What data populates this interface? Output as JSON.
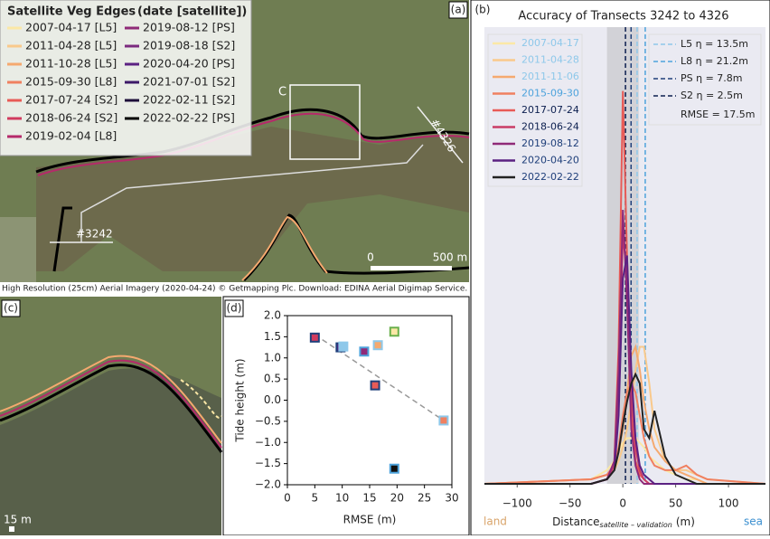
{
  "map": {
    "panel_label": "(a)",
    "legend_title": "Satellite Veg Edges",
    "legend_subtitle": "(date [satellite])",
    "legend": [
      {
        "label": "2007-04-17 [L5]",
        "color": "#fbe8a6"
      },
      {
        "label": "2011-04-28 [L5]",
        "color": "#f9c98b"
      },
      {
        "label": "2011-10-28 [L5]",
        "color": "#f5a96f"
      },
      {
        "label": "2015-09-30 [L8]",
        "color": "#f08060"
      },
      {
        "label": "2017-07-24 [S2]",
        "color": "#e85b57"
      },
      {
        "label": "2018-06-24 [S2]",
        "color": "#d13b5f"
      },
      {
        "label": "2019-02-04 [L8]",
        "color": "#b52a6a"
      },
      {
        "label": "2019-08-12 [PS]",
        "color": "#8f2a78"
      },
      {
        "label": "2019-08-18 [S2]",
        "color": "#7b2a7e"
      },
      {
        "label": "2020-04-20 [PS]",
        "color": "#5b2182"
      },
      {
        "label": "2021-07-01 [S2]",
        "color": "#3c1868"
      },
      {
        "label": "2022-02-11 [S2]",
        "color": "#1e0f3a"
      },
      {
        "label": "2022-02-22 [PS]",
        "color": "#000000"
      }
    ],
    "box_label": "C",
    "transects": [
      "#4326",
      "#3242"
    ],
    "scale_start": "0",
    "scale_end": "500 m",
    "caption": "High Resolution (25cm) Aerial Imagery (2020-04-24) © Getmapping Plc. Download: EDINA Aerial Digimap Service."
  },
  "inset": {
    "panel_label": "(c)",
    "scale": "15 m"
  },
  "chart_data": [
    {
      "type": "density",
      "panel_label": "(b)",
      "title": "Accuracy of Transects 3242 to 4326",
      "xlabel": "Distance",
      "xlabel_sub": "satellite – validation",
      "xlabel_unit": "(m)",
      "left_note": "land",
      "right_note": "sea",
      "xlim": [
        -131,
        135
      ],
      "ylim": [
        0,
        1
      ],
      "xticks": [
        {
          "value": -100,
          "label": "−100"
        },
        {
          "value": -50,
          "label": "−50"
        },
        0,
        50,
        100
      ],
      "shaded_range": [
        -15,
        15
      ],
      "x": [
        -131,
        -30,
        -15,
        -8,
        -4,
        0,
        4,
        8,
        12,
        16,
        20,
        25,
        30,
        40,
        50,
        60,
        70,
        80,
        135
      ],
      "series": [
        {
          "name": "2007-04-17",
          "color": "#fbe8a6",
          "label_color": "#8ec8ea",
          "values": [
            0,
            0.01,
            0.03,
            0.05,
            0.07,
            0.09,
            0.1,
            0.1,
            0.1,
            0.09,
            0.08,
            0.06,
            0.05,
            0.03,
            0.02,
            0.01,
            0.01,
            0,
            0
          ]
        },
        {
          "name": "2011-04-28",
          "color": "#f9c98b",
          "label_color": "#8ec8ea",
          "values": [
            0,
            0.01,
            0.02,
            0.03,
            0.05,
            0.08,
            0.12,
            0.18,
            0.25,
            0.3,
            0.3,
            0.22,
            0.12,
            0.05,
            0.03,
            0.03,
            0.02,
            0.01,
            0
          ]
        },
        {
          "name": "2011-11-06",
          "color": "#f5a96f",
          "label_color": "#8ec8ea",
          "values": [
            0,
            0.01,
            0.02,
            0.04,
            0.07,
            0.12,
            0.2,
            0.28,
            0.3,
            0.25,
            0.18,
            0.12,
            0.08,
            0.05,
            0.03,
            0.02,
            0.01,
            0,
            0
          ]
        },
        {
          "name": "2015-09-30",
          "color": "#f08060",
          "label_color": "#4ea3dc",
          "values": [
            0,
            0.01,
            0.02,
            0.04,
            0.08,
            0.15,
            0.2,
            0.22,
            0.2,
            0.15,
            0.1,
            0.06,
            0.04,
            0.03,
            0.03,
            0.04,
            0.02,
            0.01,
            0
          ]
        },
        {
          "name": "2017-07-24",
          "color": "#e85b57",
          "label_color": "#0c1f4f",
          "values": [
            0,
            0,
            0.01,
            0.05,
            0.3,
            0.86,
            0.5,
            0.15,
            0.05,
            0.02,
            0.01,
            0,
            0,
            0,
            0,
            0,
            0,
            0,
            0
          ]
        },
        {
          "name": "2018-06-24",
          "color": "#c93d66",
          "label_color": "#0c1f4f",
          "values": [
            0,
            0,
            0.01,
            0.04,
            0.2,
            0.55,
            0.45,
            0.2,
            0.08,
            0.03,
            0.01,
            0,
            0,
            0,
            0,
            0,
            0,
            0,
            0
          ]
        },
        {
          "name": "2019-08-12",
          "color": "#8f2a78",
          "label_color": "#1f3f7a",
          "values": [
            0,
            0,
            0.01,
            0.05,
            0.25,
            0.6,
            0.4,
            0.12,
            0.04,
            0.01,
            0,
            0,
            0,
            0,
            0,
            0,
            0,
            0,
            0
          ]
        },
        {
          "name": "2020-04-20",
          "color": "#5b2182",
          "label_color": "#1f3f7a",
          "values": [
            0,
            0,
            0.01,
            0.03,
            0.15,
            0.45,
            0.5,
            0.25,
            0.1,
            0.04,
            0.02,
            0.01,
            0,
            0,
            0,
            0,
            0,
            0,
            0
          ]
        },
        {
          "name": "2022-02-22",
          "color": "#222222",
          "label_color": "#1f3f7a",
          "values": [
            0,
            0,
            0.01,
            0.03,
            0.07,
            0.13,
            0.18,
            0.22,
            0.24,
            0.22,
            0.12,
            0.1,
            0.16,
            0.06,
            0.02,
            0.01,
            0,
            0,
            0
          ]
        }
      ],
      "medians": [
        {
          "label": "L5 η = 13.5m",
          "value": 13.5,
          "color": "#8ec8ea"
        },
        {
          "label": "L8 η = 21.2m",
          "value": 21.2,
          "color": "#4ea3dc"
        },
        {
          "label": "PS η = 7.8m",
          "value": 7.8,
          "color": "#1f3f7a"
        },
        {
          "label": "S2 η = 2.5m",
          "value": 2.5,
          "color": "#0c1f4f"
        }
      ],
      "annotation": "RMSE = 17.5m"
    },
    {
      "type": "scatter",
      "panel_label": "(d)",
      "xlabel": "RMSE (m)",
      "ylabel": "Tide height (m)",
      "xlim": [
        0,
        30
      ],
      "ylim": [
        -2,
        2
      ],
      "xticks": [
        0,
        5,
        10,
        15,
        20,
        25,
        30
      ],
      "yticks": [
        {
          "value": -2,
          "label": "−2.0"
        },
        {
          "value": -1.5,
          "label": "−1.5"
        },
        {
          "value": -1,
          "label": "−1.0"
        },
        {
          "value": -0.5,
          "label": "−0.5"
        },
        {
          "value": 0,
          "label": "0.0"
        },
        {
          "value": 0.5,
          "label": "0.5"
        },
        {
          "value": 1,
          "label": "1.0"
        },
        {
          "value": 1.5,
          "label": "1.5"
        },
        {
          "value": 2,
          "label": "2.0"
        }
      ],
      "x": [
        5,
        9.7,
        10.2,
        14,
        16.5,
        16,
        19.5,
        28.5,
        19.5
      ],
      "values": [
        1.48,
        1.25,
        1.27,
        1.15,
        1.3,
        0.35,
        1.62,
        -0.48,
        -1.62
      ],
      "colors": [
        "#d13b5f",
        "#5b2182",
        "#8ec8ea",
        "#8f2a78",
        "#f5a96f",
        "#e85b57",
        "#fbe8a6",
        "#f08060",
        "#111111"
      ],
      "edge_colors": [
        "#1f3f7a",
        "#1f3f7a",
        "#8ec8ea",
        "#4ea3dc",
        "#8ec8ea",
        "#1f3f7a",
        "#6ab04c",
        "#8ec8ea",
        "#4ea3dc"
      ],
      "trendline": {
        "x": [
          5,
          28.5
        ],
        "y": [
          1.55,
          -0.48
        ]
      }
    }
  ]
}
